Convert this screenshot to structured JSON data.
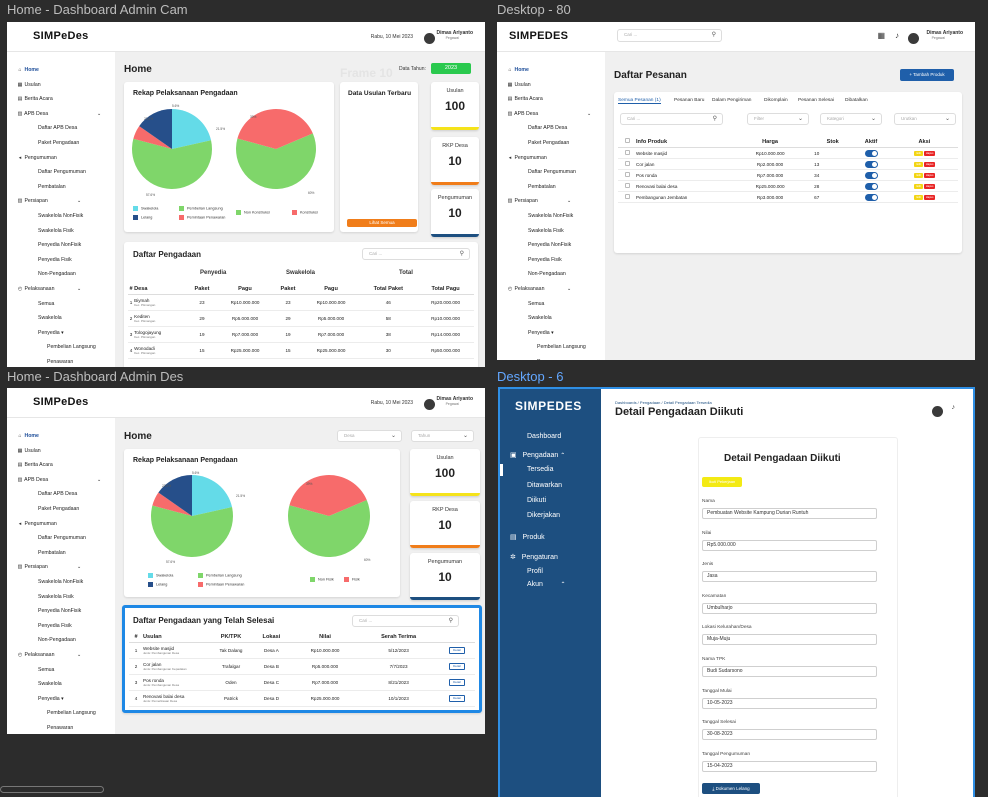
{
  "frames": {
    "f1": "Home - Dashboard Admin Cam",
    "f2": "Desktop - 80",
    "f3": "Home - Dashboard Admin Des",
    "f4": "Desktop - 6"
  },
  "brand": {
    "a": "SIMPeDes",
    "b": "SIMPEDES"
  },
  "user": {
    "name": "Dimas Ariyanto",
    "role1": "Pegawai",
    "role2": "Pegawai"
  },
  "date": "Rabu, 10 Mei 2023",
  "sidebar_a": [
    "Home",
    "Usulan",
    "Berita Acara",
    "APB Desa",
    "Daftar APB Desa",
    "Paket Pengadaan",
    "Pengumuman",
    "Daftar Pengumuman",
    "Pembatalan",
    "Persiapan",
    "Swakelola NonFisik",
    "Swakelola Fisik",
    "Penyedia NonFisik",
    "Penyedia Fisik",
    "Non-Pengadaan",
    "Pelaksanaan",
    "Semua",
    "Swakelola",
    "Penyedia",
    "Pembelian Langsung",
    "Penawaran"
  ],
  "home": {
    "title": "Home",
    "data_tahun": "Data Tahun:",
    "tahun": "2023",
    "rekap": "Rekap Pelaksanaan Pengadaan",
    "data_usulan": "Data Usulan Terbaru",
    "lihat_semua": "Lihat Semua",
    "ghost": "Frame 10"
  },
  "stats": [
    {
      "label": "Usulan",
      "value": "100",
      "color": "#f5e31a"
    },
    {
      "label": "RKP Desa",
      "value": "10",
      "color": "#f07d1a"
    },
    {
      "label": "Pengumuman",
      "value": "10",
      "color": "#1d4f80"
    }
  ],
  "pie1": {
    "labels": [
      "5.6%",
      "23.5%",
      "21.5%",
      "57.6%"
    ],
    "legend": [
      "Swakelola",
      "Pembelian Langsung",
      "Lelang",
      "Pemintaan Penawaran"
    ]
  },
  "pie2": {
    "labels": [
      "39%",
      "60%"
    ],
    "legend": [
      "Non Konstruksi",
      "Konstruksi"
    ]
  },
  "pie3": {
    "labels": [
      "5.6%",
      "23.5%",
      "21.5%",
      "57.6%"
    ]
  },
  "pie4": {
    "labels": [
      "39%",
      "60%"
    ],
    "legend": [
      "Non Fisik",
      "Fisik"
    ]
  },
  "chart_data": [
    {
      "type": "pie",
      "categories": [
        "Swakelola",
        "Pembelian Langsung",
        "Lelang",
        "Pemintaan Penawaran"
      ],
      "values": [
        21.5,
        57.6,
        5.6,
        23.5
      ]
    },
    {
      "type": "pie",
      "categories": [
        "Non Konstruksi",
        "Konstruksi"
      ],
      "values": [
        60,
        39
      ]
    }
  ],
  "pengadaan": {
    "title": "Daftar Pengadaan",
    "search": "Cari ...",
    "groups": [
      "Penyedia",
      "Swakelola",
      "Total"
    ],
    "cols": [
      "#",
      "Desa",
      "Paket",
      "Pagu",
      "Paket",
      "Pagu",
      "Total Paket",
      "Total Pagu"
    ],
    "rows": [
      [
        "1",
        "Biymah",
        "Kec. Pitmangan",
        "23",
        "Rp10.000.000",
        "23",
        "Rp10.000.000",
        "46",
        "Rp20.000.000"
      ],
      [
        "2",
        "Kediten",
        "Kec. Pitmangan",
        "29",
        "Rp5.000.000",
        "29",
        "Rp5.000.000",
        "58",
        "Rp10.000.000"
      ],
      [
        "3",
        "Tologojayung",
        "Kec. Pitmangan",
        "19",
        "Rp7.000.000",
        "19",
        "Rp7.000.000",
        "38",
        "Rp14.000.000"
      ],
      [
        "4",
        "Wonodadi",
        "Kec. Pitmangan",
        "15",
        "Rp25.000.000",
        "15",
        "Rp25.000.000",
        "30",
        "Rp50.000.000"
      ]
    ]
  },
  "pesanan": {
    "title": "Daftar Pesanan",
    "add": "+ Tambah Produk",
    "search": "Cari ...",
    "tabs": [
      "Semua Pesanan (1)",
      "Pesanan Baru",
      "Dalam Pengiriman",
      "Dikomplain",
      "Pesanan Selesai",
      "Dibatalkan"
    ],
    "filters": [
      "Filter",
      "Kategori",
      "Urutkan"
    ],
    "cols": [
      "Info Produk",
      "Harga",
      "Stok",
      "Aktif",
      "Aksi"
    ],
    "edit": "Edit",
    "hapus": "Hapus",
    "rows": [
      [
        "Website masjid",
        "Rp10.000.000",
        "10"
      ],
      [
        "Cor jalan",
        "Rp2.000.000",
        "13"
      ],
      [
        "Pos ronda",
        "Rp7.000.000",
        "34"
      ],
      [
        "Renovasi balai desa",
        "Rp25.000.000",
        "28"
      ],
      [
        "Pembangunan Jembatan",
        "Rp3.000.000",
        "67"
      ]
    ]
  },
  "des": {
    "desa": "Desa",
    "tahun": "Tahun",
    "selesai": "Daftar Pengadaan yang Telah Selesai",
    "search": "Cari ...",
    "cols": [
      "#",
      "Usulan",
      "PK/TPK",
      "Lokasi",
      "Nilai",
      "Serah Terima",
      ""
    ],
    "detail": "Detail",
    "rows": [
      [
        "1",
        "Website masjid",
        "Jenis: Pembangunan Desa",
        "Tak Dalang",
        "Desa A",
        "Rp10.000.000",
        "5/12/2023"
      ],
      [
        "2",
        "Cor jalan",
        "Jenis: Pembangunan Kepadatan",
        "Trafalgar",
        "Desa B",
        "Rp5.000.000",
        "7/7/2023"
      ],
      [
        "3",
        "Pos ronda",
        "Jenis: Pembangunan Desa",
        "Oden",
        "Desa C",
        "Rp7.000.000",
        "8/21/2023"
      ],
      [
        "4",
        "Renovasi balai desa",
        "Jenis: Pemeriksaan Desa",
        "Patrick",
        "Desa D",
        "Rp25.000.000",
        "10/1/2023"
      ]
    ]
  },
  "detail": {
    "breadcrumb": "Dashboards / Pengadaan / Detail Pengadaan Tersedia",
    "page_title": "Detail Pengadaan Diikuti",
    "card_title": "Detail Pengadaan Diikuti",
    "badge": "Ikuti Pekerjaan",
    "nav": [
      "Dashboard",
      "Pengadaan",
      "Tersedia",
      "Ditawarkan",
      "Diikuti",
      "Dikerjakan",
      "Produk",
      "Pengaturan",
      "Profil",
      "Akun"
    ],
    "fields": [
      {
        "label": "Nama",
        "value": "Pembuatan Website Kampung Durian Runtuh"
      },
      {
        "label": "Nilai",
        "value": "Rp5.000.000"
      },
      {
        "label": "Jenis",
        "value": "Jasa"
      },
      {
        "label": "Kecamatan",
        "value": "Umbulharjo"
      },
      {
        "label": "Lokasi Kelurahan/Desa",
        "value": "Muja-Muju"
      },
      {
        "label": "Nama TPK",
        "value": "Budi Sudarsono"
      },
      {
        "label": "Tanggal Mulai",
        "value": "10-05-2023"
      },
      {
        "label": "Tanggal Selesai",
        "value": "30-08-2023"
      },
      {
        "label": "Tanggal Pengumuman",
        "value": "15-04-2023"
      }
    ],
    "download": "Dokumen Lelang"
  }
}
